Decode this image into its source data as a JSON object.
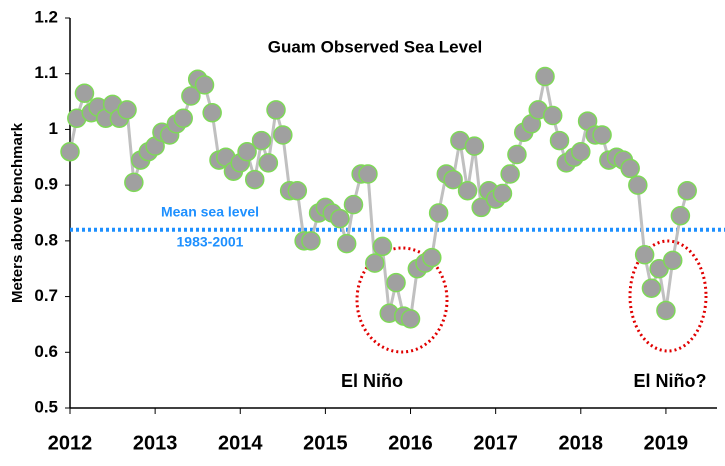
{
  "chart_data": {
    "type": "line",
    "title": "Guam Observed Sea Level",
    "y_label": "Meters above benchmark",
    "x": [
      2012.0,
      2012.08,
      2012.17,
      2012.25,
      2012.33,
      2012.42,
      2012.5,
      2012.58,
      2012.67,
      2012.75,
      2012.83,
      2012.92,
      2013.0,
      2013.08,
      2013.17,
      2013.25,
      2013.33,
      2013.42,
      2013.5,
      2013.58,
      2013.67,
      2013.75,
      2013.83,
      2013.92,
      2014.0,
      2014.08,
      2014.17,
      2014.25,
      2014.33,
      2014.42,
      2014.5,
      2014.58,
      2014.67,
      2014.75,
      2014.83,
      2014.92,
      2015.0,
      2015.08,
      2015.17,
      2015.25,
      2015.33,
      2015.42,
      2015.5,
      2015.58,
      2015.67,
      2015.75,
      2015.83,
      2015.92,
      2016.0,
      2016.08,
      2016.17,
      2016.25,
      2016.33,
      2016.42,
      2016.5,
      2016.58,
      2016.67,
      2016.75,
      2016.83,
      2016.92,
      2017.0,
      2017.08,
      2017.17,
      2017.25,
      2017.33,
      2017.42,
      2017.5,
      2017.58,
      2017.67,
      2017.75,
      2017.83,
      2017.92,
      2018.0,
      2018.08,
      2018.17,
      2018.25,
      2018.33,
      2018.42,
      2018.5,
      2018.58,
      2018.67,
      2018.75,
      2018.83,
      2018.92,
      2019.0,
      2019.08,
      2019.17,
      2019.25
    ],
    "values": [
      0.96,
      1.02,
      1.065,
      1.03,
      1.04,
      1.02,
      1.045,
      1.02,
      1.035,
      0.905,
      0.945,
      0.96,
      0.97,
      0.995,
      0.99,
      1.01,
      1.02,
      1.06,
      1.09,
      1.08,
      1.03,
      0.945,
      0.95,
      0.925,
      0.94,
      0.96,
      0.91,
      0.98,
      0.94,
      1.035,
      0.99,
      0.89,
      0.89,
      0.8,
      0.8,
      0.85,
      0.86,
      0.85,
      0.84,
      0.795,
      0.865,
      0.92,
      0.92,
      0.76,
      0.79,
      0.67,
      0.725,
      0.665,
      0.66,
      0.75,
      0.76,
      0.77,
      0.85,
      0.92,
      0.91,
      0.98,
      0.89,
      0.97,
      0.86,
      0.89,
      0.875,
      0.885,
      0.92,
      0.955,
      0.995,
      1.01,
      1.035,
      1.095,
      1.025,
      0.98,
      0.94,
      0.95,
      0.96,
      1.015,
      0.99,
      0.99,
      0.945,
      0.95,
      0.945,
      0.93,
      0.9,
      0.775,
      0.715,
      0.75,
      0.675,
      0.765,
      0.845,
      0.89
    ],
    "line_color": "#c0c0c0",
    "marker_color": "#a0a0a0",
    "marker_edge_color": "#7ed957",
    "xlim": [
      2012,
      2019.6
    ],
    "xticks": [
      2012,
      2013,
      2014,
      2015,
      2016,
      2017,
      2018,
      2019
    ],
    "ylim": [
      0.5,
      1.2
    ],
    "yticks": [
      0.5,
      0.6,
      0.7,
      0.8,
      0.9,
      1,
      1.1,
      1.2
    ],
    "reference_line": {
      "value": 0.82,
      "label": "Mean sea level",
      "sublabel": "1983-2001",
      "color": "#1e90ff"
    },
    "annotations": [
      "El Niño",
      "El Niño?"
    ]
  }
}
